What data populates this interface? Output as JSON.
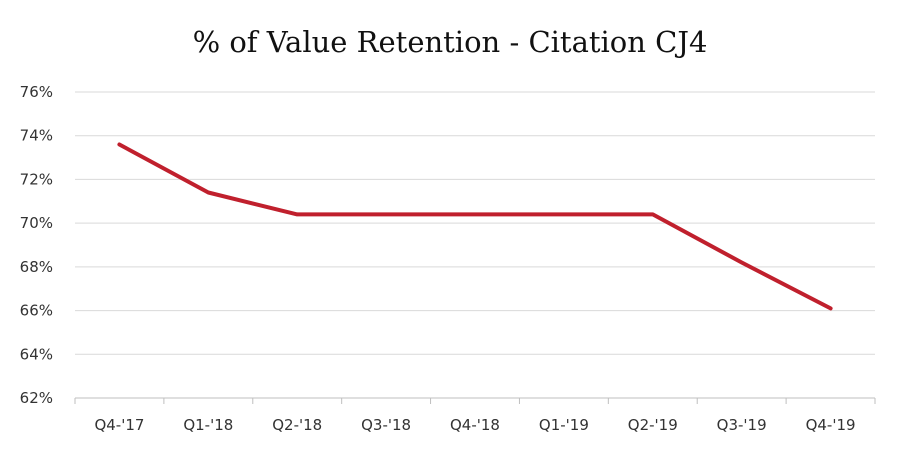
{
  "chart_data": {
    "type": "line",
    "title": "% of Value Retention - Citation CJ4",
    "xlabel": "",
    "ylabel": "",
    "categories": [
      "Q4-'17",
      "Q1-'18",
      "Q2-'18",
      "Q3-'18",
      "Q4-'18",
      "Q1-'19",
      "Q2-'19",
      "Q3-'19",
      "Q4-'19"
    ],
    "series": [
      {
        "values": [
          73.6,
          71.4,
          70.4,
          70.4,
          70.4,
          70.4,
          70.4,
          68.2,
          66.1
        ],
        "color": "#c0202d"
      }
    ],
    "ylim": [
      62,
      76
    ],
    "yticks": [
      62,
      64,
      66,
      68,
      70,
      72,
      74,
      76
    ],
    "ytick_labels": [
      "62%",
      "64%",
      "66%",
      "68%",
      "70%",
      "72%",
      "74%",
      "76%"
    ],
    "grid": true,
    "legend": "none"
  },
  "colors": {
    "line": "#c0202d",
    "grid": "#d9d9d9",
    "axis": "#bfbfbf"
  }
}
